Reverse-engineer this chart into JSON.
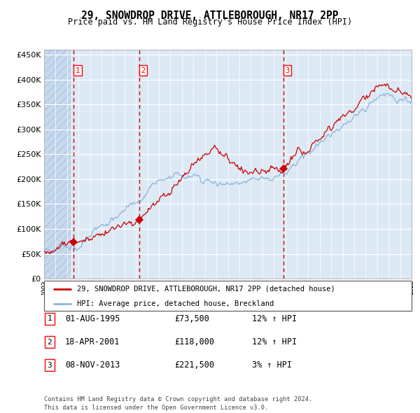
{
  "title": "29, SNOWDROP DRIVE, ATTLEBOROUGH, NR17 2PP",
  "subtitle": "Price paid vs. HM Land Registry's House Price Index (HPI)",
  "red_label": "29, SNOWDROP DRIVE, ATTLEBOROUGH, NR17 2PP (detached house)",
  "blue_label": "HPI: Average price, detached house, Breckland",
  "transactions": [
    {
      "num": 1,
      "date": "01-AUG-1995",
      "price": 73500,
      "pct": "12%",
      "dir": "↑"
    },
    {
      "num": 2,
      "date": "18-APR-2001",
      "price": 118000,
      "pct": "12%",
      "dir": "↑"
    },
    {
      "num": 3,
      "date": "08-NOV-2013",
      "price": 221500,
      "pct": "3%",
      "dir": "↑"
    }
  ],
  "transaction_years": [
    1995.58,
    2001.29,
    2013.85
  ],
  "transaction_prices": [
    73500,
    118000,
    221500
  ],
  "year_start": 1993,
  "year_end": 2025,
  "ylim": [
    0,
    460000
  ],
  "yticks": [
    0,
    50000,
    100000,
    150000,
    200000,
    250000,
    300000,
    350000,
    400000,
    450000
  ],
  "plot_bg": "#dce9f5",
  "grid_color": "#ffffff",
  "red_line_color": "#cc0000",
  "blue_line_color": "#8ab4d8",
  "vline_color": "#cc0000",
  "dot_color": "#cc0000",
  "footer": "Contains HM Land Registry data © Crown copyright and database right 2024.\nThis data is licensed under the Open Government Licence v3.0."
}
